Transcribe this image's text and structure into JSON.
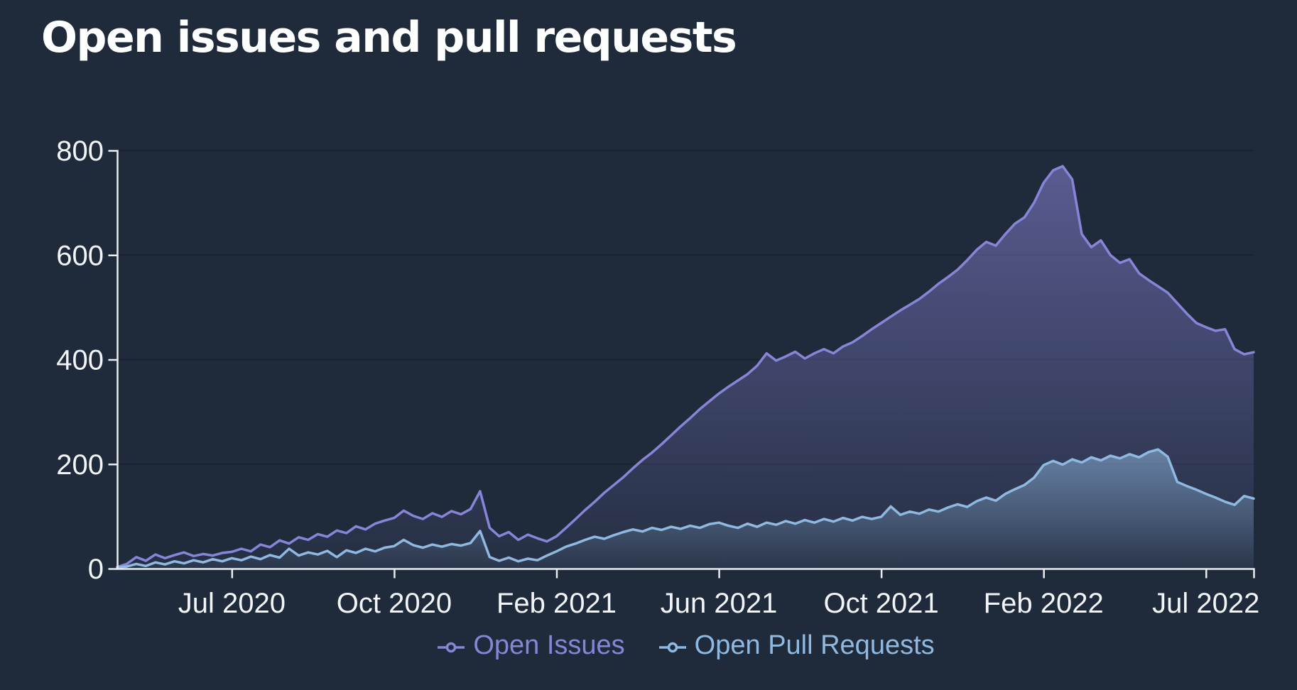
{
  "page": {
    "title": "Open issues and pull requests",
    "background": "#1f2a3a"
  },
  "chart_data": {
    "type": "area",
    "title": "Open issues and pull requests",
    "grid": true,
    "legend_position": "bottom",
    "ylim": [
      0,
      800
    ],
    "y_ticks": [
      0,
      200,
      400,
      600,
      800
    ],
    "x_ticks": [
      {
        "index": 12,
        "label": "Jul 2020"
      },
      {
        "index": 29,
        "label": "Oct 2020"
      },
      {
        "index": 46,
        "label": "Feb 2021"
      },
      {
        "index": 63,
        "label": "Jun 2021"
      },
      {
        "index": 80,
        "label": "Oct 2021"
      },
      {
        "index": 97,
        "label": "Feb 2022"
      },
      {
        "index": 114,
        "label": "Jul 2022"
      }
    ],
    "colors": {
      "axis": "#e9edf2",
      "grid": "#1a2230",
      "text": "#f2f5f8",
      "background": "#1f2a3a"
    },
    "series": [
      {
        "name": "Open Issues",
        "color": "#8884d8",
        "values": [
          3,
          9,
          22,
          15,
          27,
          20,
          26,
          31,
          24,
          28,
          25,
          30,
          32,
          38,
          33,
          46,
          41,
          54,
          48,
          60,
          55,
          66,
          61,
          73,
          68,
          81,
          75,
          86,
          92,
          97,
          111,
          101,
          95,
          106,
          99,
          110,
          104,
          114,
          148,
          78,
          62,
          70,
          55,
          65,
          58,
          52,
          62,
          78,
          95,
          112,
          128,
          145,
          160,
          175,
          192,
          208,
          222,
          238,
          255,
          272,
          288,
          305,
          320,
          335,
          348,
          360,
          372,
          388,
          412,
          398,
          406,
          415,
          402,
          412,
          420,
          412,
          425,
          433,
          445,
          458,
          470,
          482,
          494,
          505,
          516,
          530,
          545,
          558,
          572,
          590,
          610,
          625,
          618,
          640,
          660,
          672,
          700,
          738,
          762,
          770,
          745,
          640,
          615,
          628,
          600,
          585,
          592,
          565,
          552,
          540,
          528,
          508,
          488,
          470,
          462,
          455,
          458,
          420,
          410,
          414
        ]
      },
      {
        "name": "Open Pull Requests",
        "color": "#8fb9e0",
        "values": [
          2,
          4,
          9,
          5,
          12,
          8,
          14,
          10,
          16,
          12,
          18,
          14,
          20,
          16,
          23,
          18,
          26,
          21,
          38,
          25,
          31,
          27,
          34,
          22,
          35,
          30,
          38,
          33,
          40,
          43,
          55,
          45,
          40,
          46,
          42,
          47,
          44,
          49,
          72,
          22,
          15,
          21,
          14,
          19,
          16,
          25,
          33,
          42,
          48,
          55,
          61,
          57,
          64,
          70,
          75,
          71,
          78,
          74,
          80,
          76,
          82,
          78,
          85,
          88,
          82,
          78,
          86,
          80,
          88,
          84,
          91,
          86,
          93,
          88,
          95,
          90,
          97,
          92,
          99,
          95,
          99,
          119,
          103,
          109,
          105,
          113,
          109,
          117,
          123,
          118,
          129,
          136,
          130,
          143,
          152,
          160,
          174,
          198,
          206,
          199,
          209,
          203,
          213,
          207,
          216,
          211,
          219,
          213,
          223,
          228,
          214,
          166,
          158,
          151,
          143,
          136,
          128,
          122,
          139,
          134
        ]
      }
    ]
  }
}
